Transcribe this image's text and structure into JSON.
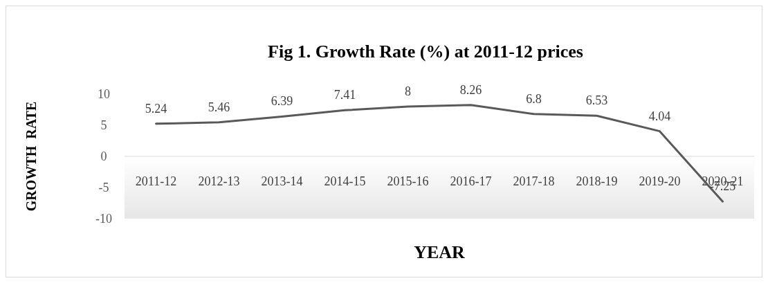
{
  "chart_data": {
    "type": "line",
    "title": "Fig 1. Growth Rate (%) at 2011-12 prices",
    "xlabel": "YEAR",
    "ylabel": "GROWTH  RATE",
    "categories": [
      "2011-12",
      "2012-13",
      "2013-14",
      "2014-15",
      "2015-16",
      "2016-17",
      "2017-18",
      "2018-19",
      "2019-20",
      "2020-21"
    ],
    "series": [
      {
        "color": "#595959",
        "values": [
          5.24,
          5.46,
          6.39,
          7.41,
          8,
          8.26,
          6.8,
          6.53,
          4.04,
          -7.25
        ]
      }
    ],
    "ylim": [
      -10,
      10
    ],
    "yticks": [
      -10,
      -5,
      0,
      5,
      10
    ],
    "data_labels": true,
    "grid": false,
    "marker": "none",
    "line_style": "solid"
  }
}
